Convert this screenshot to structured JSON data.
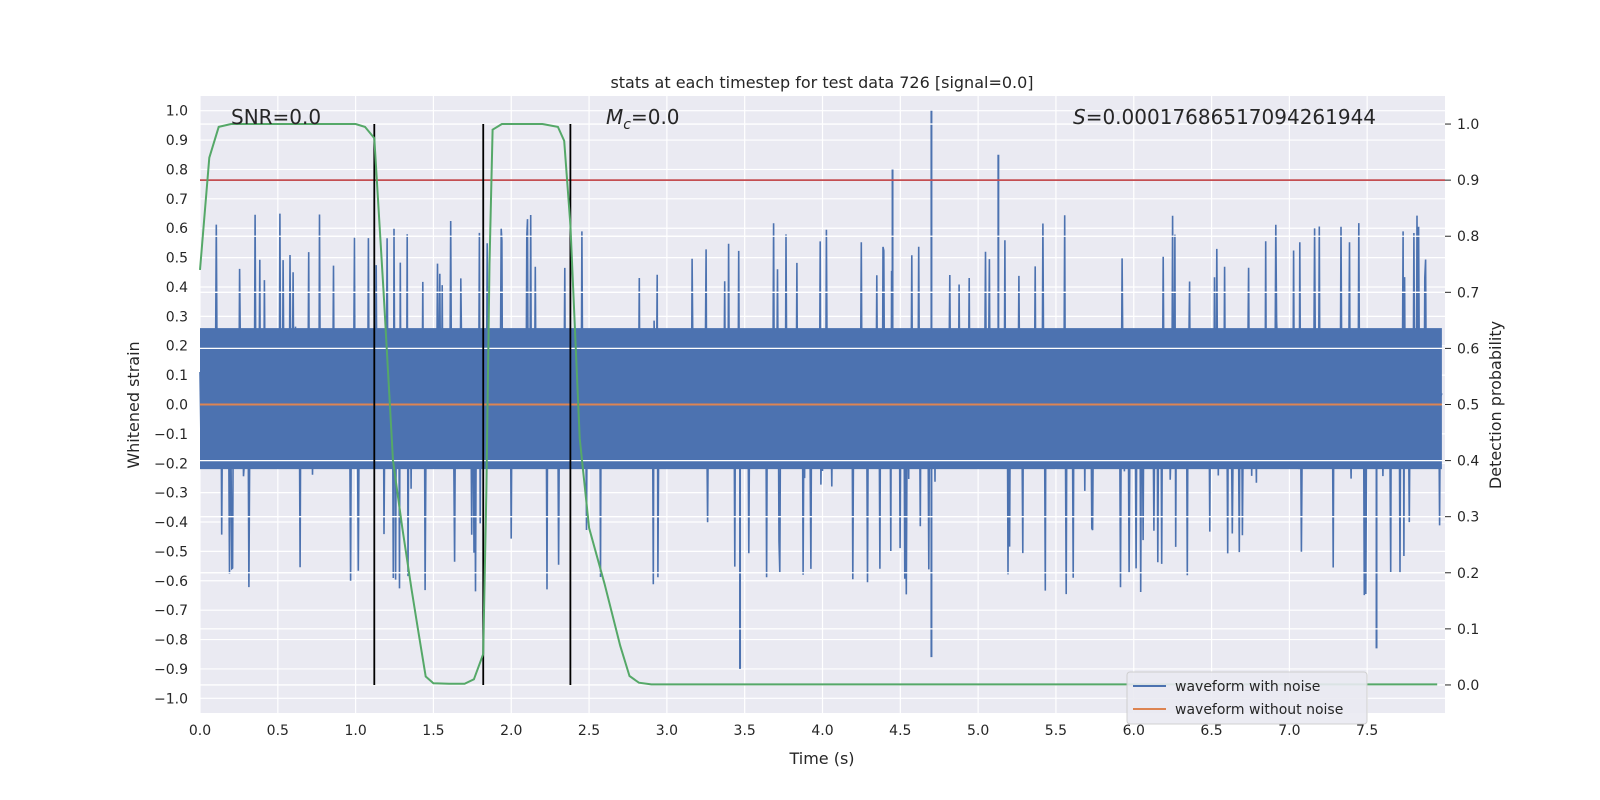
{
  "chart_data": {
    "type": "line",
    "title": "stats at each timestep for test data 726 [signal=0.0]",
    "xlabel": "Time (s)",
    "ylabel_left": "Whitened strain",
    "ylabel_right": "Detection probability",
    "xlim": [
      0.0,
      8.0
    ],
    "ylim_left": [
      -1.05,
      1.05
    ],
    "ylim_right": [
      -0.05,
      1.05
    ],
    "x_ticks": [
      "0.0",
      "0.5",
      "1.0",
      "1.5",
      "2.0",
      "2.5",
      "3.0",
      "3.5",
      "4.0",
      "4.5",
      "5.0",
      "5.5",
      "6.0",
      "6.5",
      "7.0",
      "7.5"
    ],
    "y_left_ticks": [
      "-1.0",
      "-0.9",
      "-0.8",
      "-0.7",
      "-0.6",
      "-0.5",
      "-0.4",
      "-0.3",
      "-0.2",
      "-0.1",
      "0.0",
      "0.1",
      "0.2",
      "0.3",
      "0.4",
      "0.5",
      "0.6",
      "0.7",
      "0.8",
      "0.9",
      "1.0"
    ],
    "y_right_ticks": [
      "0.0",
      "0.1",
      "0.2",
      "0.3",
      "0.4",
      "0.5",
      "0.6",
      "0.7",
      "0.8",
      "0.9",
      "1.0"
    ],
    "grid": true,
    "legend_position": "lower-right",
    "annotations": {
      "snr": "SNR=0.0",
      "mc_symbol": "M",
      "mc_sub": "c",
      "mc_value": "=0.0",
      "s_symbol": "S",
      "s_value": "=0.00017686517094261944"
    },
    "series": [
      {
        "name": "waveform with noise",
        "color": "#4c72b0",
        "axis": "left",
        "description_stats": {
          "typical_envelope": [
            -0.55,
            0.55
          ],
          "peaks": [
            [
              4.7,
              1.0
            ],
            [
              5.13,
              0.85
            ],
            [
              4.45,
              0.8
            ],
            [
              3.47,
              -0.9
            ],
            [
              4.7,
              -0.86
            ],
            [
              7.56,
              -0.83
            ]
          ]
        }
      },
      {
        "name": "waveform without noise",
        "color": "#dd8452",
        "axis": "left",
        "x": [
          0.0,
          8.0
        ],
        "y": [
          0.0,
          0.0
        ]
      },
      {
        "name": "detection probability",
        "color": "#55a868",
        "axis": "right",
        "x": [
          0.0,
          0.06,
          0.12,
          0.2,
          0.5,
          1.0,
          1.06,
          1.12,
          1.18,
          1.24,
          1.3,
          1.36,
          1.4,
          1.45,
          1.5,
          1.6,
          1.7,
          1.76,
          1.82,
          1.84,
          1.86,
          1.88,
          1.94,
          2.0,
          2.2,
          2.3,
          2.34,
          2.38,
          2.44,
          2.5,
          2.6,
          2.7,
          2.76,
          2.82,
          2.9,
          3.2,
          7.95
        ],
        "y": [
          0.74,
          0.94,
          0.995,
          1.0,
          1.0,
          1.0,
          0.995,
          0.975,
          0.7,
          0.4,
          0.28,
          0.17,
          0.1,
          0.015,
          0.003,
          0.002,
          0.002,
          0.01,
          0.055,
          0.35,
          0.75,
          0.99,
          1.0,
          1.0,
          1.0,
          0.995,
          0.97,
          0.82,
          0.44,
          0.28,
          0.18,
          0.07,
          0.016,
          0.004,
          0.001,
          0.001,
          0.001
        ]
      }
    ],
    "threshold_line": {
      "color": "#c44e52",
      "y_right": 0.9
    },
    "vertical_lines": {
      "color": "#000000",
      "x": [
        1.12,
        1.82,
        2.38
      ],
      "y_right": [
        0.0,
        1.0
      ]
    }
  }
}
